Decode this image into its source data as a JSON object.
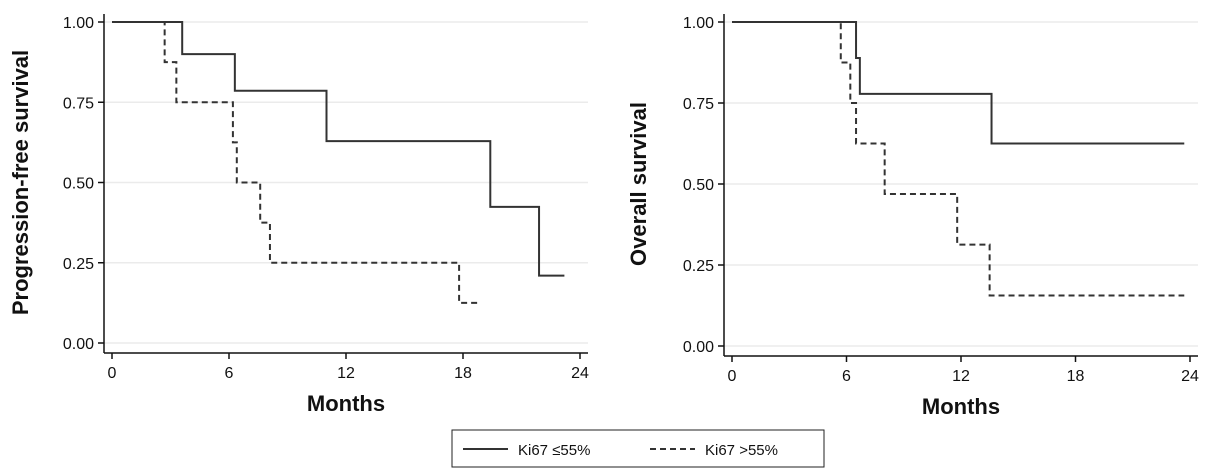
{
  "chart_data": [
    {
      "type": "line",
      "step": true,
      "title": "",
      "xlabel": "Months",
      "ylabel": "Progression-free survival",
      "xlim": [
        0,
        24
      ],
      "ylim": [
        0,
        1
      ],
      "xticks": [
        "0",
        "6",
        "12",
        "18",
        "24"
      ],
      "yticks": [
        "0.00",
        "0.25",
        "0.50",
        "0.75",
        "1.00"
      ],
      "grid": true,
      "series": [
        {
          "name": "Ki67 ≤55%",
          "style": "solid",
          "x": [
            0,
            3.6,
            6.3,
            11,
            19.4,
            21.9,
            23.2
          ],
          "y": [
            1.0,
            0.9,
            0.786,
            0.629,
            0.424,
            0.21,
            0.21
          ]
        },
        {
          "name": "Ki67 >55%",
          "style": "dashed",
          "x": [
            0,
            2.7,
            3.3,
            6.2,
            6.4,
            7.6,
            7.8,
            8.1,
            17.8,
            18.8
          ],
          "y": [
            1.0,
            0.875,
            0.75,
            0.625,
            0.5,
            0.375,
            0.375,
            0.25,
            0.125,
            0.125
          ]
        }
      ]
    },
    {
      "type": "line",
      "step": true,
      "title": "",
      "xlabel": "Months",
      "ylabel": "Overall survival",
      "xlim": [
        0,
        24
      ],
      "ylim": [
        0,
        1
      ],
      "xticks": [
        "0",
        "6",
        "12",
        "18",
        "24"
      ],
      "yticks": [
        "0.00",
        "0.25",
        "0.50",
        "0.75",
        "1.00"
      ],
      "grid": true,
      "series": [
        {
          "name": "Ki67 ≤55%",
          "style": "solid",
          "x": [
            0,
            6.5,
            6.7,
            13.6,
            23.7
          ],
          "y": [
            1.0,
            0.889,
            0.778,
            0.625,
            0.625
          ]
        },
        {
          "name": "Ki67 >55%",
          "style": "dashed",
          "x": [
            0,
            5.7,
            6.2,
            6.5,
            8.0,
            11.8,
            13.5,
            23.7
          ],
          "y": [
            1.0,
            0.875,
            0.75,
            0.625,
            0.469,
            0.313,
            0.156,
            0.156
          ]
        }
      ]
    }
  ],
  "legend": {
    "items": [
      {
        "label": "Ki67 ≤55%",
        "style": "solid"
      },
      {
        "label": "Ki67 >55%",
        "style": "dashed"
      }
    ],
    "position": "bottom-center"
  },
  "colors": {
    "line": "#333333",
    "grid": "#ebebeb",
    "axis": "#111111"
  }
}
